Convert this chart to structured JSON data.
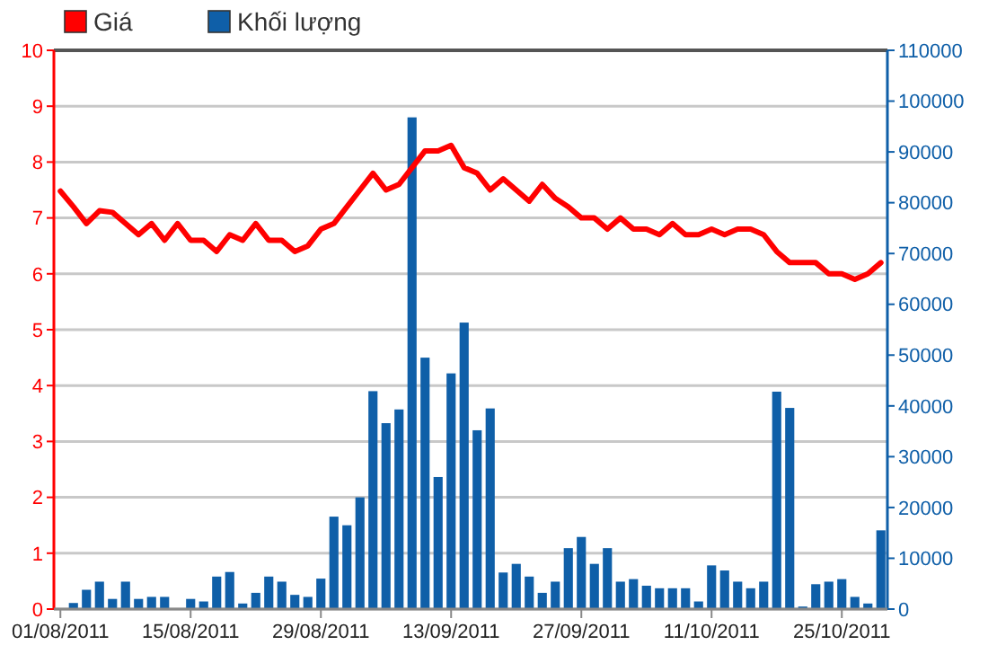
{
  "chart_data": {
    "type": "bar",
    "categories": [
      "01/08/2011",
      null,
      null,
      null,
      null,
      null,
      null,
      null,
      null,
      null,
      "15/08/2011",
      null,
      null,
      null,
      null,
      null,
      null,
      null,
      null,
      null,
      "29/08/2011",
      null,
      null,
      null,
      null,
      null,
      null,
      null,
      null,
      null,
      "13/09/2011",
      null,
      null,
      null,
      null,
      null,
      null,
      null,
      null,
      null,
      "27/09/2011",
      null,
      null,
      null,
      null,
      null,
      null,
      null,
      null,
      null,
      "11/10/2011",
      null,
      null,
      null,
      null,
      null,
      null,
      null,
      null,
      null,
      "25/10/2011",
      null,
      null,
      null
    ],
    "series": [
      {
        "name": "Khối lượng",
        "axis": "y2",
        "color": "#0f5fa8",
        "values": [
          0,
          1200,
          3800,
          5400,
          2000,
          5400,
          2000,
          2400,
          2400,
          0,
          2000,
          1500,
          6400,
          7300,
          1100,
          3200,
          6400,
          5400,
          2800,
          2400,
          6000,
          18200,
          16500,
          22000,
          42900,
          36600,
          39300,
          96800,
          49500,
          26000,
          46400,
          56400,
          35200,
          39500,
          7200,
          8900,
          6400,
          3200,
          5400,
          12000,
          14200,
          8900,
          12000,
          5400,
          5900,
          4600,
          4100,
          4100,
          4100,
          1500,
          8600,
          7600,
          5400,
          4100,
          5400,
          42800,
          39600,
          500,
          4900,
          5400,
          5900,
          2400,
          1100,
          15500
        ]
      },
      {
        "name": "Giá",
        "type": "line",
        "color": "#ff0000",
        "values": [
          7.48,
          7.2,
          6.9,
          7.13,
          7.1,
          6.9,
          6.7,
          6.9,
          6.6,
          6.9,
          6.6,
          6.6,
          6.4,
          6.7,
          6.6,
          6.9,
          6.6,
          6.6,
          6.4,
          6.5,
          6.8,
          6.9,
          7.2,
          7.5,
          7.8,
          7.5,
          7.6,
          7.9,
          8.2,
          8.2,
          8.3,
          7.9,
          7.8,
          7.5,
          7.7,
          7.5,
          7.3,
          7.6,
          7.35,
          7.2,
          7.0,
          7.0,
          6.8,
          7.0,
          6.8,
          6.8,
          6.7,
          6.9,
          6.7,
          6.7,
          6.8,
          6.7,
          6.8,
          6.8,
          6.7,
          6.4,
          6.2,
          6.2,
          6.2,
          6.0,
          6.0,
          5.9,
          6.0,
          6.2
        ]
      }
    ],
    "ylim": [
      0,
      10
    ],
    "yticks": [
      0,
      1,
      2,
      3,
      4,
      5,
      6,
      7,
      8,
      9,
      10
    ],
    "y2lim": [
      0,
      110000
    ],
    "y2ticks": [
      0,
      10000,
      20000,
      30000,
      40000,
      50000,
      60000,
      70000,
      80000,
      90000,
      100000,
      110000
    ],
    "grid": "y",
    "legend": "top left"
  }
}
